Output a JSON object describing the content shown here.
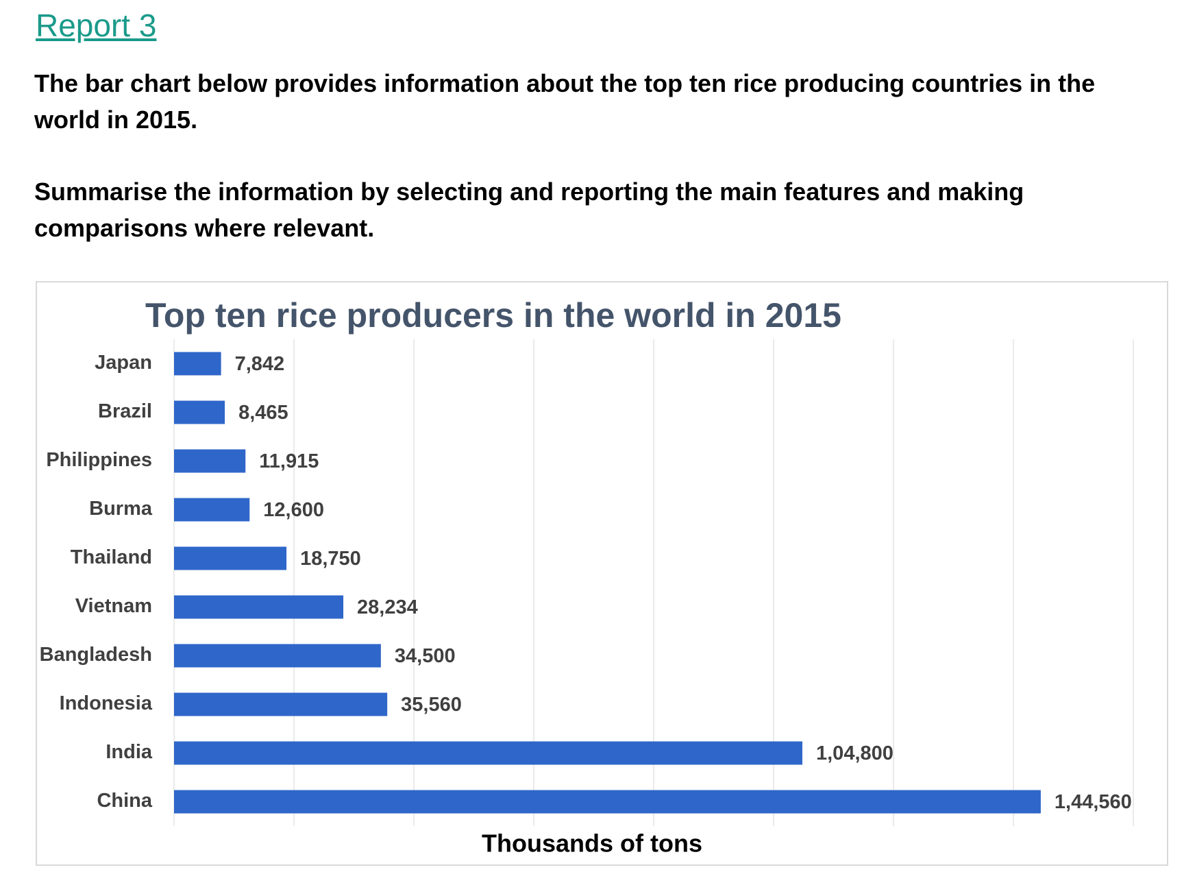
{
  "header": {
    "title": "Report 3"
  },
  "paragraphs": [
    "The bar chart below provides information about the top ten rice producing countries in the world in 2015.",
    "Summarise the information by selecting and reporting the main features and making comparisons where relevant."
  ],
  "chart_data": {
    "type": "hbar",
    "title": "Top ten rice producers in the world in 2015",
    "x_label": "Thousands  of  tons",
    "categories": [
      "Japan",
      "Brazil",
      "Philippines",
      "Burma",
      "Thailand",
      "Vietnam",
      "Bangladesh",
      "Indonesia",
      "India",
      "China"
    ],
    "values": [
      7842,
      8465,
      11915,
      12600,
      18750,
      28234,
      34500,
      35560,
      104800,
      144560
    ],
    "value_labels": [
      "7,842",
      "8,465",
      "11,915",
      "12,600",
      "18,750",
      "28,234",
      "34,500",
      "35,560",
      "1,04,800",
      "1,44,560"
    ],
    "color": "#2f66c9",
    "xlim": [
      0,
      160000
    ],
    "xticks": [
      0,
      20000,
      40000,
      60000,
      80000,
      100000,
      120000,
      140000,
      160000
    ],
    "grid": true
  }
}
